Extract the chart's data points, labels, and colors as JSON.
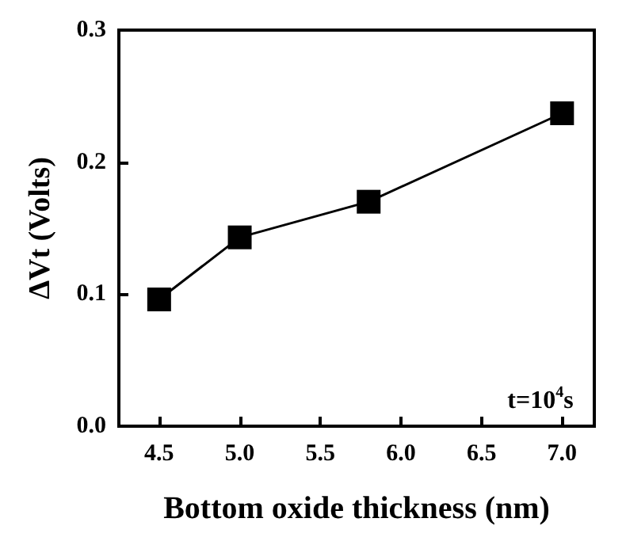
{
  "chart_data": {
    "type": "line",
    "xlabel": "Bottom oxide thickness (nm)",
    "ylabel": "ΔVt (Volts)",
    "x": [
      4.5,
      5.0,
      5.8,
      7.0
    ],
    "series": [
      {
        "color": "#000000",
        "values": [
          0.096,
          0.143,
          0.17,
          0.237
        ]
      }
    ],
    "xlim": [
      4.25,
      7.2
    ],
    "xticks": [
      4.5,
      {
        "value": 5,
        "label": "5.0"
      },
      5.5,
      {
        "value": 6,
        "label": "6.0"
      },
      6.5,
      {
        "value": 7,
        "label": "7.0"
      }
    ],
    "ylim": [
      0,
      0.3
    ],
    "yticks": [
      {
        "value": 0,
        "label": "0.0"
      },
      0.1,
      0.2,
      0.3
    ],
    "marker": "square",
    "line_style": "solid",
    "grid": false,
    "annotations": [
      "t=10$^{4}$s"
    ]
  }
}
